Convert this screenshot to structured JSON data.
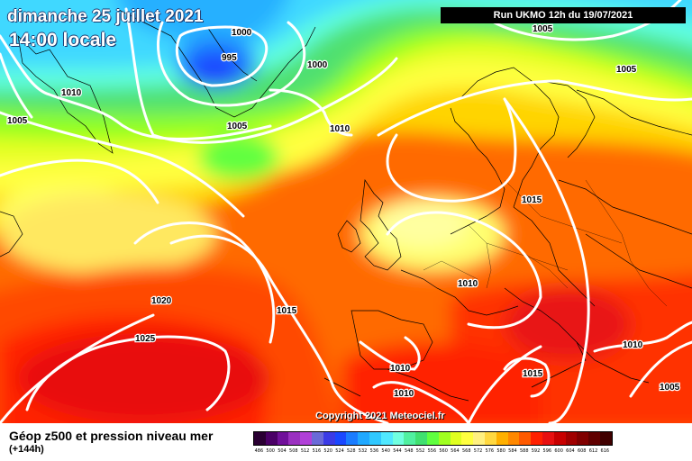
{
  "header": {
    "date": "dimanche 25 juillet 2021",
    "time": "14:00 locale",
    "run": "Run UKMO 12h du 19/07/2021"
  },
  "copyright": "Copyright 2021 Meteociel.fr",
  "legend": {
    "title": "Géop z500 et pression niveau mer",
    "subtitle": "(+144h)",
    "ticks": [
      "486",
      "500",
      "504",
      "508",
      "512",
      "516",
      "520",
      "524",
      "528",
      "532",
      "536",
      "540",
      "544",
      "548",
      "552",
      "556",
      "560",
      "564",
      "568",
      "572",
      "576",
      "580",
      "584",
      "588",
      "592",
      "596",
      "600",
      "604",
      "608",
      "612",
      "616"
    ],
    "colors": [
      "#2a0033",
      "#4a0066",
      "#70109a",
      "#9a30c0",
      "#b040d8",
      "#6a6ad8",
      "#3b3be6",
      "#1a48ff",
      "#1a7cff",
      "#20a8ff",
      "#30c8ff",
      "#50e8ff",
      "#70ffe0",
      "#50f0a0",
      "#40e070",
      "#60ff40",
      "#a0ff20",
      "#e0ff20",
      "#ffff40",
      "#fff080",
      "#ffd840",
      "#ffb000",
      "#ff8800",
      "#ff5a00",
      "#ff2000",
      "#e81010",
      "#c80000",
      "#a00000",
      "#800000",
      "#600000",
      "#400000"
    ]
  },
  "isobars": [
    {
      "label": "1000"
    },
    {
      "label": "995"
    },
    {
      "label": "1000"
    },
    {
      "label": "1005"
    },
    {
      "label": "1005"
    },
    {
      "label": "1010"
    },
    {
      "label": "1005"
    },
    {
      "label": "1005"
    },
    {
      "label": "1010"
    },
    {
      "label": "1015"
    },
    {
      "label": "1010"
    },
    {
      "label": "1020"
    },
    {
      "label": "1015"
    },
    {
      "label": "1025"
    },
    {
      "label": "1010"
    },
    {
      "label": "1010"
    },
    {
      "label": "1015"
    },
    {
      "label": "1010"
    },
    {
      "label": "1005"
    }
  ]
}
